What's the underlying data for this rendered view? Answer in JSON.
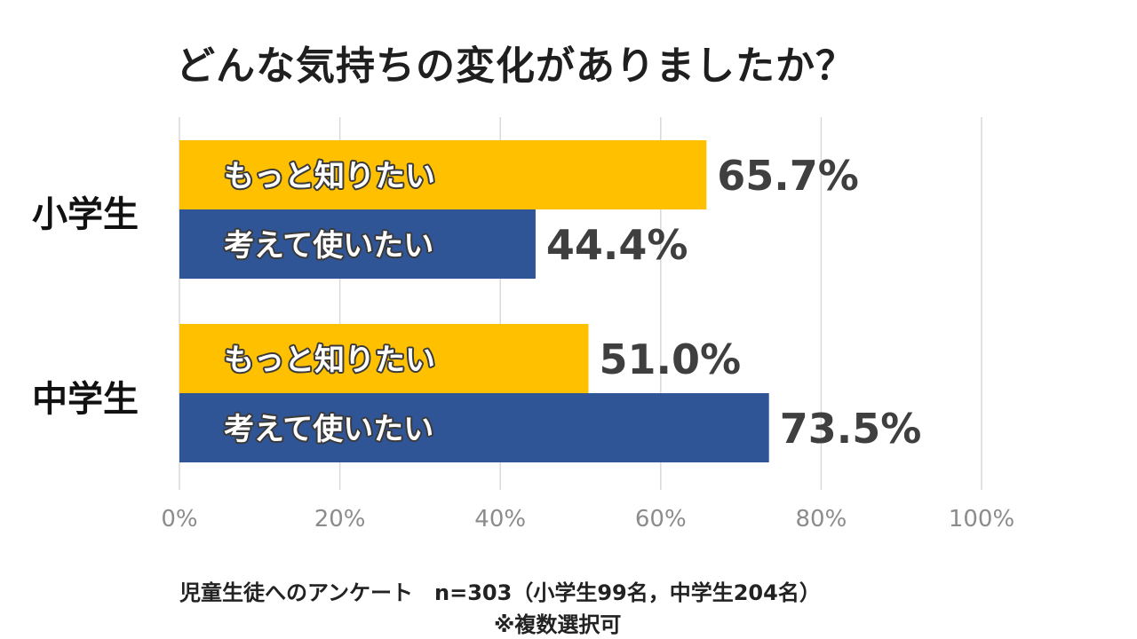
{
  "chart_data": {
    "type": "bar",
    "orientation": "horizontal",
    "title": "どんな気持ちの変化がありましたか？",
    "categories": [
      "小学生",
      "中学生"
    ],
    "series": [
      {
        "name": "もっと知りたい",
        "values": [
          65.7,
          51.0
        ],
        "color": "#FFC000"
      },
      {
        "name": "考えて使いたい",
        "values": [
          44.4,
          73.5
        ],
        "color": "#2F5597"
      }
    ],
    "value_labels": [
      [
        "65.7%",
        "51.0%"
      ],
      [
        "44.4%",
        "73.5%"
      ]
    ],
    "x_ticks": [
      "0%",
      "20%",
      "40%",
      "60%",
      "80%",
      "100%"
    ],
    "xlim": [
      0,
      100
    ],
    "grid": true
  },
  "footnote": {
    "line1": "児童生徒へのアンケート　n=303（小学生99名，中学生204名）",
    "line2": "※複数選択可"
  }
}
